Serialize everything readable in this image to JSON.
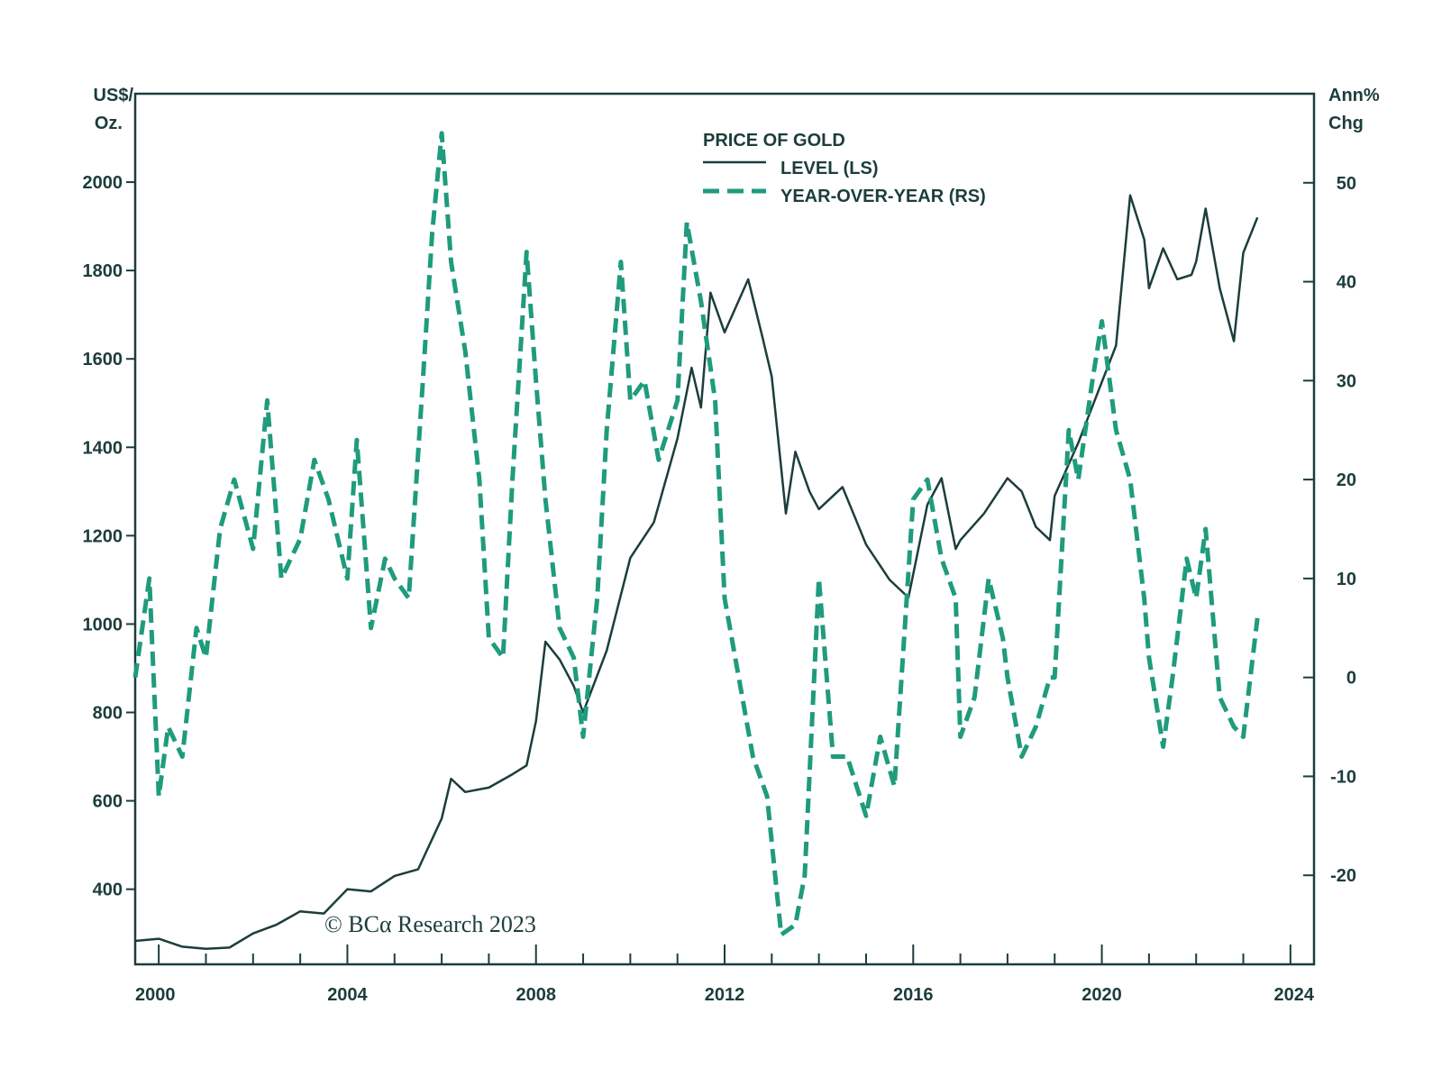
{
  "chart_data": {
    "type": "line",
    "title": "PRICE OF GOLD",
    "copyright": "© BCα Research 2023",
    "left_axis": {
      "unit_line1": "US$/",
      "unit_line2": "Oz.",
      "range": [
        230,
        2200
      ],
      "ticks": [
        400,
        600,
        800,
        1000,
        1200,
        1400,
        1600,
        1800,
        2000
      ],
      "tick_labels": [
        "400",
        "600",
        "800",
        "1000",
        "1200",
        "1400",
        "1600",
        "1800",
        "2000"
      ]
    },
    "right_axis": {
      "unit_line1": "Ann%",
      "unit_line2": "Chg",
      "range": [
        -29,
        59
      ],
      "ticks": [
        -20,
        -10,
        0,
        10,
        20,
        30,
        40,
        50
      ],
      "tick_labels": [
        "-20",
        "-10",
        "0",
        "10",
        "20",
        "30",
        "40",
        "50"
      ]
    },
    "x_axis": {
      "range": [
        1999.5,
        2024.5
      ],
      "major_ticks": [
        2000,
        2004,
        2008,
        2012,
        2016,
        2020,
        2024
      ],
      "tick_labels": [
        "2000",
        "2004",
        "2008",
        "2012",
        "2016",
        "2020",
        "2024"
      ],
      "minor_ticks": [
        2001,
        2002,
        2003,
        2005,
        2006,
        2007,
        2009,
        2010,
        2011,
        2013,
        2014,
        2015,
        2017,
        2018,
        2019,
        2021,
        2022,
        2023
      ]
    },
    "legend": {
      "position": "top-center",
      "entries": [
        "LEVEL (LS)",
        "YEAR-OVER-YEAR (RS)"
      ]
    },
    "colors": {
      "level": "#1c3d3c",
      "yoy": "#1f9b7d",
      "axis": "#1c3d3c"
    },
    "series": [
      {
        "name": "LEVEL (LS)",
        "axis": "left",
        "style": "solid",
        "x": [
          1999.5,
          2000.0,
          2000.5,
          2001.0,
          2001.5,
          2002.0,
          2002.5,
          2003.0,
          2003.5,
          2004.0,
          2004.5,
          2005.0,
          2005.5,
          2006.0,
          2006.2,
          2006.5,
          2007.0,
          2007.5,
          2007.8,
          2008.0,
          2008.2,
          2008.5,
          2008.8,
          2009.0,
          2009.5,
          2010.0,
          2010.5,
          2011.0,
          2011.3,
          2011.5,
          2011.7,
          2012.0,
          2012.5,
          2012.8,
          2013.0,
          2013.3,
          2013.5,
          2013.8,
          2014.0,
          2014.5,
          2015.0,
          2015.5,
          2015.9,
          2016.3,
          2016.6,
          2016.9,
          2017.0,
          2017.5,
          2018.0,
          2018.3,
          2018.6,
          2018.9,
          2019.0,
          2019.5,
          2019.9,
          2020.3,
          2020.6,
          2020.9,
          2021.0,
          2021.3,
          2021.6,
          2021.9,
          2022.0,
          2022.2,
          2022.5,
          2022.8,
          2023.0,
          2023.3
        ],
        "values": [
          283,
          288,
          270,
          265,
          268,
          300,
          320,
          350,
          345,
          400,
          395,
          430,
          445,
          560,
          650,
          620,
          630,
          660,
          680,
          780,
          960,
          920,
          860,
          800,
          940,
          1150,
          1230,
          1420,
          1580,
          1490,
          1750,
          1660,
          1780,
          1650,
          1560,
          1250,
          1390,
          1300,
          1260,
          1310,
          1180,
          1100,
          1060,
          1270,
          1330,
          1170,
          1190,
          1250,
          1330,
          1300,
          1220,
          1190,
          1290,
          1410,
          1520,
          1630,
          1970,
          1870,
          1760,
          1850,
          1780,
          1790,
          1820,
          1940,
          1760,
          1640,
          1840,
          1920
        ]
      },
      {
        "name": "YEAR-OVER-YEAR (RS)",
        "axis": "right",
        "style": "dashed",
        "x": [
          1999.5,
          1999.8,
          2000.0,
          2000.2,
          2000.5,
          2000.8,
          2001.0,
          2001.3,
          2001.6,
          2002.0,
          2002.3,
          2002.6,
          2003.0,
          2003.3,
          2003.6,
          2004.0,
          2004.2,
          2004.5,
          2004.8,
          2005.0,
          2005.3,
          2005.6,
          2005.8,
          2006.0,
          2006.2,
          2006.5,
          2006.8,
          2007.0,
          2007.3,
          2007.5,
          2007.8,
          2008.0,
          2008.2,
          2008.5,
          2008.8,
          2009.0,
          2009.3,
          2009.5,
          2009.8,
          2010.0,
          2010.3,
          2010.6,
          2011.0,
          2011.2,
          2011.5,
          2011.8,
          2012.0,
          2012.3,
          2012.6,
          2012.9,
          2013.2,
          2013.5,
          2013.7,
          2014.0,
          2014.3,
          2014.6,
          2015.0,
          2015.3,
          2015.6,
          2016.0,
          2016.3,
          2016.6,
          2016.9,
          2017.0,
          2017.3,
          2017.6,
          2017.9,
          2018.0,
          2018.3,
          2018.6,
          2018.9,
          2019.0,
          2019.3,
          2019.5,
          2019.8,
          2020.0,
          2020.3,
          2020.6,
          2020.9,
          2021.0,
          2021.3,
          2021.5,
          2021.8,
          2022.0,
          2022.2,
          2022.5,
          2022.8,
          2023.0,
          2023.3
        ],
        "values": [
          0,
          10,
          -12,
          -5,
          -8,
          5,
          2,
          15,
          20,
          13,
          28,
          10,
          14,
          22,
          18,
          10,
          24,
          5,
          12,
          10,
          8,
          30,
          45,
          55,
          42,
          33,
          20,
          4,
          2,
          20,
          43,
          30,
          18,
          5,
          2,
          -6,
          8,
          25,
          42,
          28,
          30,
          22,
          28,
          46,
          38,
          28,
          8,
          0,
          -8,
          -12,
          -26,
          -25,
          -20,
          10,
          -8,
          -8,
          -14,
          -6,
          -11,
          18,
          20,
          12,
          8,
          -6,
          -2,
          10,
          4,
          0,
          -8,
          -5,
          0,
          0,
          25,
          20,
          30,
          36,
          25,
          20,
          8,
          2,
          -7,
          0,
          12,
          8,
          15,
          -2,
          -5,
          -6,
          6
        ]
      }
    ]
  }
}
